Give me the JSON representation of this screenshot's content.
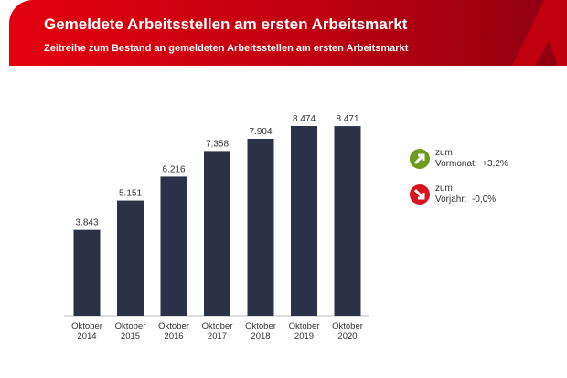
{
  "header": {
    "title": "Gemeldete Arbeitsstellen am ersten Arbeitsmarkt",
    "subtitle": "Zeitreihe zum Bestand an gemeldeten Arbeitsstellen am ersten Arbeitsmarkt"
  },
  "chart_data": {
    "type": "bar",
    "categories": [
      "Oktober 2014",
      "Oktober 2015",
      "Oktober 2016",
      "Oktober 2017",
      "Oktober 2018",
      "Oktober 2019",
      "Oktober 2020"
    ],
    "values": [
      3843,
      5151,
      6216,
      7358,
      7904,
      8474,
      8471
    ],
    "data_labels": [
      "3.843",
      "5.151",
      "6.216",
      "7.358",
      "7.904",
      "8.474",
      "8.471"
    ],
    "ylim": [
      0,
      8474
    ],
    "grid": false,
    "bar_color": "#2b3147"
  },
  "indicators": [
    {
      "line1": "zum",
      "line2": "Vormonat:  +3,2%",
      "icon": "arrow-up-right-icon",
      "color": "#6e9a1f"
    },
    {
      "line1": "zum",
      "line2": "Vorjahr:  -0,0%",
      "icon": "arrow-down-right-icon",
      "color": "#d7141e"
    }
  ]
}
